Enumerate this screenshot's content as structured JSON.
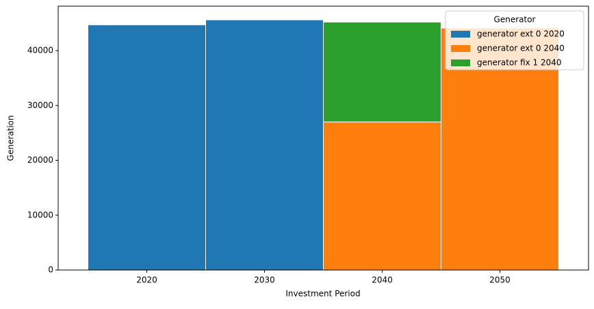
{
  "chart_data": {
    "type": "stacked_bar",
    "x_label": "Investment Period",
    "y_label": "Generation",
    "categories": [
      "2020",
      "2030",
      "2040",
      "2050"
    ],
    "series": [
      {
        "name": "generator ext 0 2020",
        "color": "#1f77b4",
        "values": [
          44700,
          45600,
          0,
          0
        ]
      },
      {
        "name": "generator ext 0 2040",
        "color": "#ff7f0e",
        "values": [
          0,
          0,
          27000,
          44100
        ]
      },
      {
        "name": "generator fix 1 2040",
        "color": "#2ca02c",
        "values": [
          0,
          0,
          18200,
          0
        ]
      }
    ],
    "ylim": [
      0,
      48100
    ],
    "yticks": [
      0,
      10000,
      20000,
      30000,
      40000
    ],
    "grid": false,
    "legend_title": "Generator",
    "legend_position": "upper right"
  }
}
